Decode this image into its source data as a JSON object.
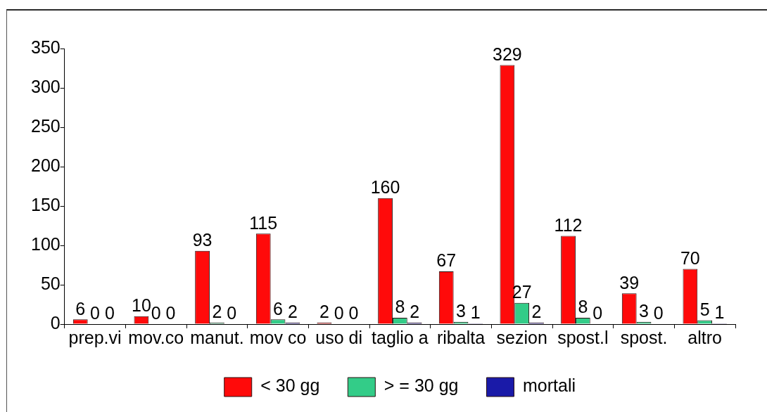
{
  "chart_data": {
    "type": "bar",
    "categories": [
      "prep.vi",
      "mov.co",
      "manut.",
      "mov co",
      "uso di",
      "taglio a",
      "ribalta",
      "sezion",
      "spost.l",
      "spost.",
      "altro"
    ],
    "series": [
      {
        "name": "< 30 gg",
        "color": "#ff0a0a",
        "values": [
          6,
          10,
          93,
          115,
          2,
          160,
          67,
          329,
          112,
          39,
          70
        ]
      },
      {
        "name": "> = 30 gg",
        "color": "#33cc88",
        "values": [
          0,
          0,
          2,
          6,
          0,
          8,
          3,
          27,
          8,
          3,
          5
        ]
      },
      {
        "name": "mortali",
        "color": "#1a1aa8",
        "values": [
          0,
          0,
          0,
          2,
          0,
          2,
          1,
          2,
          0,
          0,
          1
        ]
      }
    ],
    "ylim": [
      0,
      350
    ],
    "yticks": [
      0,
      50,
      100,
      150,
      200,
      250,
      300,
      350
    ],
    "grid": false,
    "legend": "bottom",
    "data_labels": true
  }
}
